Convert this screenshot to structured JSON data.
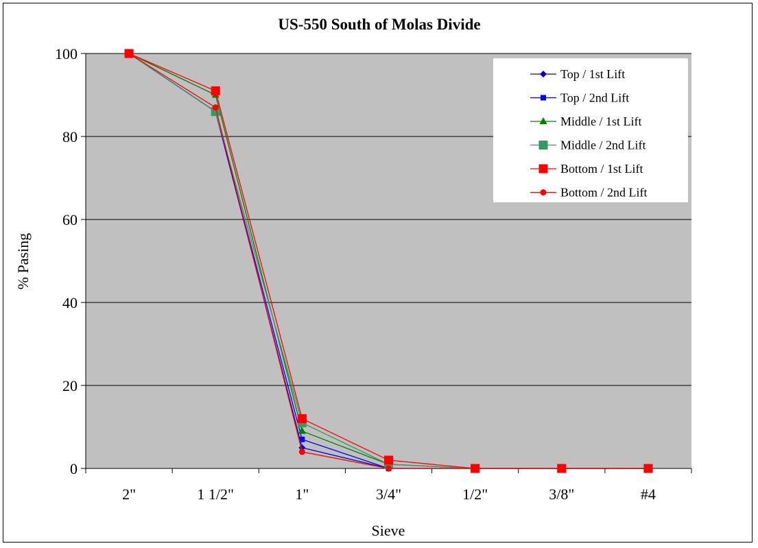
{
  "chart_data": {
    "type": "line",
    "title": "US-550  South of Molas Divide",
    "xlabel": "Sieve",
    "ylabel": "% Pasing",
    "categories": [
      "2\"",
      "1 1/2\"",
      "1\"",
      "3/4\"",
      "1/2\"",
      "3/8\"",
      "#4"
    ],
    "ylim": [
      0,
      100
    ],
    "yticks": [
      0,
      20,
      40,
      60,
      80,
      100
    ],
    "grid": true,
    "legend_position": "top-right",
    "plot_background": "#C0C0C0",
    "series": [
      {
        "name": "Top / 1st Lift",
        "color": "#0000CC",
        "marker": "diamond",
        "values": [
          100,
          86,
          5,
          0,
          0,
          0,
          0
        ]
      },
      {
        "name": "Top / 2nd Lift",
        "color": "#0000FF",
        "marker": "square-small",
        "values": [
          100,
          86,
          7,
          0,
          0,
          0,
          0
        ]
      },
      {
        "name": "Middle / 1st Lift",
        "color": "#008000",
        "marker": "triangle",
        "values": [
          100,
          90,
          9,
          1,
          0,
          0,
          0
        ]
      },
      {
        "name": "Middle / 2nd Lift",
        "color": "#339966",
        "marker": "square-large",
        "values": [
          100,
          86,
          11,
          1,
          0,
          0,
          0
        ]
      },
      {
        "name": "Bottom / 1st Lift",
        "color": "#FF0000",
        "marker": "square-large",
        "values": [
          100,
          91,
          12,
          2,
          0,
          0,
          0
        ]
      },
      {
        "name": "Bottom / 2nd Lift",
        "color": "#FF0000",
        "marker": "circle",
        "values": [
          100,
          87,
          4,
          0,
          0,
          0,
          0
        ]
      }
    ]
  }
}
